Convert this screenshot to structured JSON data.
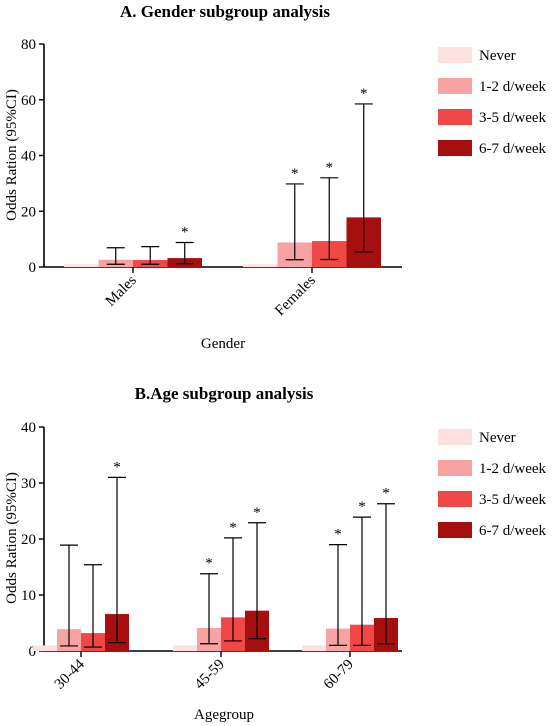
{
  "chart_data": [
    {
      "type": "bar",
      "title": "A. Gender subgroup analysis",
      "xlabel": "Gender",
      "ylabel": "Odds Ration (95%CI)",
      "ylim": [
        0,
        80
      ],
      "yticks": [
        0,
        20,
        40,
        60,
        80
      ],
      "categories": [
        "Males",
        "Females"
      ],
      "legend_position": "right",
      "series": [
        {
          "name": "Never",
          "color": "#fde1e1",
          "values": [
            1,
            1
          ],
          "ci_low": [
            null,
            null
          ],
          "ci_high": [
            null,
            null
          ],
          "sig": [
            false,
            false
          ]
        },
        {
          "name": "1-2 d/week",
          "color": "#f7a3a3",
          "values": [
            2.6,
            8.8
          ],
          "ci_low": [
            1.0,
            2.6
          ],
          "ci_high": [
            6.9,
            29.8
          ],
          "sig": [
            false,
            true
          ]
        },
        {
          "name": "3-5 d/week",
          "color": "#f04747",
          "values": [
            2.5,
            9.3
          ],
          "ci_low": [
            1.0,
            2.7
          ],
          "ci_high": [
            7.3,
            32.0
          ],
          "sig": [
            false,
            true
          ]
        },
        {
          "name": "6-7 d/week",
          "color": "#a50f0f",
          "values": [
            3.2,
            17.8
          ],
          "ci_low": [
            1.2,
            5.4
          ],
          "ci_high": [
            8.8,
            58.5
          ],
          "sig": [
            true,
            true
          ]
        }
      ]
    },
    {
      "type": "bar",
      "title": "B.Age subgroup analysis",
      "xlabel": "Agegroup",
      "ylabel": "Odds Ration (95%CI)",
      "ylim": [
        0,
        40
      ],
      "yticks": [
        0,
        10,
        20,
        30,
        40
      ],
      "categories": [
        "30-44",
        "45-59",
        "60-79"
      ],
      "legend_position": "right",
      "series": [
        {
          "name": "Never",
          "color": "#fde1e1",
          "values": [
            1,
            1,
            1
          ],
          "ci_low": [
            null,
            null,
            null
          ],
          "ci_high": [
            null,
            null,
            null
          ],
          "sig": [
            false,
            false,
            false
          ]
        },
        {
          "name": "1-2 d/week",
          "color": "#f7a3a3",
          "values": [
            3.9,
            4.1,
            4.0
          ],
          "ci_low": [
            0.9,
            1.3,
            1.0
          ],
          "ci_high": [
            18.9,
            13.8,
            19.0
          ],
          "sig": [
            false,
            true,
            true
          ]
        },
        {
          "name": "3-5 d/week",
          "color": "#f04747",
          "values": [
            3.2,
            6.0,
            4.7
          ],
          "ci_low": [
            0.7,
            1.8,
            1.0
          ],
          "ci_high": [
            15.4,
            20.2,
            23.9
          ],
          "sig": [
            false,
            true,
            true
          ]
        },
        {
          "name": "6-7 d/week",
          "color": "#a50f0f",
          "values": [
            6.6,
            7.2,
            5.9
          ],
          "ci_low": [
            1.5,
            2.2,
            1.3
          ],
          "ci_high": [
            31.0,
            22.9,
            26.3
          ],
          "sig": [
            true,
            true,
            true
          ]
        }
      ]
    }
  ]
}
